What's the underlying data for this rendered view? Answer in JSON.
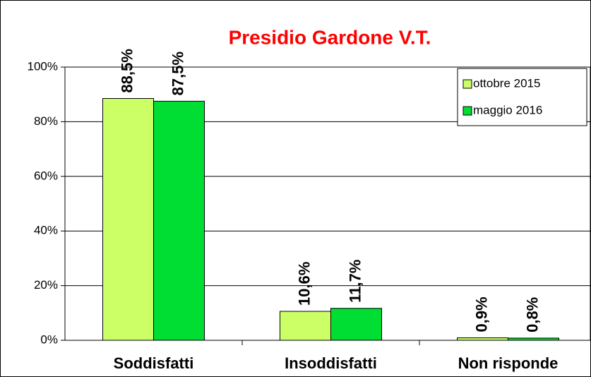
{
  "chart_data": {
    "type": "bar",
    "title": "Presidio Gardone V.T.",
    "categories": [
      "Soddisfatti",
      "Insoddisfatti",
      "Non risponde"
    ],
    "series": [
      {
        "name": "ottobre 2015",
        "color": "#ccff66",
        "values": [
          88.5,
          10.6,
          0.9
        ],
        "value_labels": [
          "88,5%",
          "10,6%",
          "0,9%"
        ]
      },
      {
        "name": "maggio 2016",
        "color": "#00dd33",
        "values": [
          87.5,
          11.7,
          0.8
        ],
        "value_labels": [
          "87,5%",
          "11,7%",
          "0,8%"
        ]
      }
    ],
    "ylim": [
      0,
      100
    ],
    "yticks": [
      {
        "value": 0,
        "label": "0%"
      },
      {
        "value": 20,
        "label": "20%"
      },
      {
        "value": 40,
        "label": "40%"
      },
      {
        "value": 60,
        "label": "60%"
      },
      {
        "value": 80,
        "label": "80%"
      },
      {
        "value": 100,
        "label": "100%"
      }
    ],
    "grid": true,
    "legend": "upper right"
  }
}
